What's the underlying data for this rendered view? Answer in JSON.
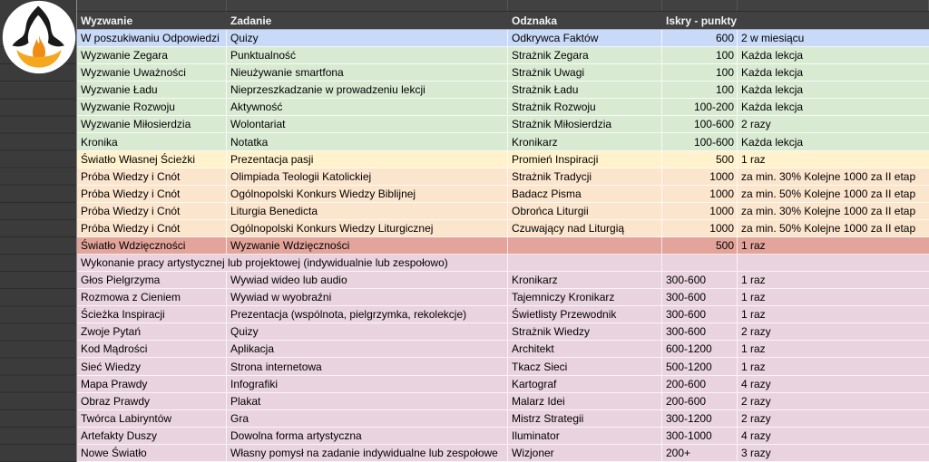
{
  "logo": {
    "icon": "hooded-figure-flame-logo",
    "colors": {
      "circle": "#ffffff",
      "figure": "#1a1a1a",
      "flame": "#ef8c15",
      "bowl": "#f5a71d"
    }
  },
  "sheet": {
    "columns": [
      "Wyzwanie",
      "Zadanie",
      "Odznaka",
      "Iskry - punkty",
      ""
    ],
    "colors": {
      "blue": "#c9daf8",
      "green": "#d9ead3",
      "yellow": "#fff2cc",
      "peach": "#fce5cd",
      "salmon": "#e2a49b",
      "pink": "#e9d3de",
      "header_bg": "#414141",
      "header_text": "#f3f3f3",
      "gutter_bg": "#3b3b3b"
    },
    "rows": [
      {
        "wyzwanie": "W poszukiwaniu Odpowiedzi",
        "zadanie": "Quizy",
        "odznaka": "Odkrywca Faktów",
        "punkty": "600",
        "czestotliwosc": "2 w miesiącu",
        "bg": "blue",
        "punkty_align": "right"
      },
      {
        "wyzwanie": "Wyzwanie Zegara",
        "zadanie": "Punktualność",
        "odznaka": "Strażnik Zegara",
        "punkty": "100",
        "czestotliwosc": "Każda lekcja",
        "bg": "green",
        "punkty_align": "right"
      },
      {
        "wyzwanie": "Wyzwanie Uważności",
        "zadanie": "Nieużywanie smartfona",
        "odznaka": "Strażnik Uwagi",
        "punkty": "100",
        "czestotliwosc": "Każda lekcja",
        "bg": "green",
        "punkty_align": "right"
      },
      {
        "wyzwanie": "Wyzwanie Ładu",
        "zadanie": "Nieprzeszkadzanie w prowadzeniu lekcji",
        "odznaka": "Strażnik Ładu",
        "punkty": "100",
        "czestotliwosc": "Każda lekcja",
        "bg": "green",
        "punkty_align": "right"
      },
      {
        "wyzwanie": "Wyzwanie Rozwoju",
        "zadanie": "Aktywność",
        "odznaka": "Strażnik Rozwoju",
        "punkty": "100-200",
        "czestotliwosc": "Każda lekcja",
        "bg": "green",
        "punkty_align": "right"
      },
      {
        "wyzwanie": "Wyzwanie Miłosierdzia",
        "zadanie": "Wolontariat",
        "odznaka": "Strażnik Miłosierdzia",
        "punkty": "100-600",
        "czestotliwosc": "2 razy",
        "bg": "green",
        "punkty_align": "right"
      },
      {
        "wyzwanie": "Kronika",
        "zadanie": "Notatka",
        "odznaka": "Kronikarz",
        "punkty": "100-600",
        "czestotliwosc": "Każda lekcja",
        "bg": "green",
        "punkty_align": "right"
      },
      {
        "wyzwanie": "Światło Własnej Ścieżki",
        "zadanie": "Prezentacja pasji",
        "odznaka": "Promień Inspiracji",
        "punkty": "500",
        "czestotliwosc": "1 raz",
        "bg": "yellow",
        "punkty_align": "right"
      },
      {
        "wyzwanie": "Próba Wiedzy i Cnót",
        "zadanie": "Olimpiada Teologii Katolickiej",
        "odznaka": "Strażnik Tradycji",
        "punkty": "1000",
        "czestotliwosc": "za min. 30% Kolejne 1000 za II etap",
        "bg": "peach",
        "punkty_align": "right"
      },
      {
        "wyzwanie": "Próba Wiedzy i Cnót",
        "zadanie": "Ogólnopolski Konkurs Wiedzy Biblijnej",
        "odznaka": "Badacz Pisma",
        "punkty": "1000",
        "czestotliwosc": "za min. 50% Kolejne 1000 za II etap",
        "bg": "peach",
        "punkty_align": "right"
      },
      {
        "wyzwanie": "Próba Wiedzy i Cnót",
        "zadanie": "Liturgia Benedicta",
        "odznaka": "Obrońca Liturgii",
        "punkty": "1000",
        "czestotliwosc": "za min. 30% Kolejne 1000 za II etap",
        "bg": "peach",
        "punkty_align": "right"
      },
      {
        "wyzwanie": "Próba Wiedzy i Cnót",
        "zadanie": "Ogólnopolski Konkurs Wiedzy Liturgicznej",
        "odznaka": "Czuwający nad Liturgią",
        "punkty": "1000",
        "czestotliwosc": "za min. 50% Kolejne 1000 za II etap",
        "bg": "peach",
        "punkty_align": "right"
      },
      {
        "wyzwanie": "Światło Wdzięczności",
        "zadanie": "Wyzwanie Wdzięczności",
        "odznaka": "",
        "punkty": "500",
        "czestotliwosc": "1 raz",
        "bg": "salmon",
        "punkty_align": "right"
      },
      {
        "wyzwanie": "Wykonanie pracy artystycznej lub projektowej (indywidualnie lub zespołowo)",
        "zadanie": "",
        "odznaka": "",
        "punkty": "",
        "czestotliwosc": "",
        "bg": "pink",
        "punkty_align": "left",
        "overflow": true
      },
      {
        "wyzwanie": "Głos Pielgrzyma",
        "zadanie": "Wywiad wideo lub audio",
        "odznaka": "Kronikarz",
        "punkty": "300-600",
        "czestotliwosc": "1 raz",
        "bg": "pink",
        "punkty_align": "left"
      },
      {
        "wyzwanie": "Rozmowa z Cieniem",
        "zadanie": "Wywiad w wyobraźni",
        "odznaka": "Tajemniczy Kronikarz",
        "punkty": "300-600",
        "czestotliwosc": "1 raz",
        "bg": "pink",
        "punkty_align": "left"
      },
      {
        "wyzwanie": "Ścieżka Inspiracji",
        "zadanie": "Prezentacja (wspólnota, pielgrzymka, rekolekcje)",
        "odznaka": "Świetlisty Przewodnik",
        "punkty": "300-600",
        "czestotliwosc": "1 raz",
        "bg": "pink",
        "punkty_align": "left"
      },
      {
        "wyzwanie": "Zwoje Pytań",
        "zadanie": "Quizy",
        "odznaka": "Strażnik Wiedzy",
        "punkty": "300-600",
        "czestotliwosc": "2 razy",
        "bg": "pink",
        "punkty_align": "left"
      },
      {
        "wyzwanie": "Kod Mądrości",
        "zadanie": "Aplikacja",
        "odznaka": "Architekt",
        "punkty": "600-1200",
        "czestotliwosc": "1 raz",
        "bg": "pink",
        "punkty_align": "left"
      },
      {
        "wyzwanie": "Sieć Wiedzy",
        "zadanie": "Strona internetowa",
        "odznaka": "Tkacz Sieci",
        "punkty": "500-1200",
        "czestotliwosc": "1 raz",
        "bg": "pink",
        "punkty_align": "left"
      },
      {
        "wyzwanie": "Mapa Prawdy",
        "zadanie": "Infografiki",
        "odznaka": "Kartograf",
        "punkty": "200-600",
        "czestotliwosc": "4 razy",
        "bg": "pink",
        "punkty_align": "left"
      },
      {
        "wyzwanie": "Obraz Prawdy",
        "zadanie": "Plakat",
        "odznaka": "Malarz Idei",
        "punkty": "200-600",
        "czestotliwosc": "2 razy",
        "bg": "pink",
        "punkty_align": "left"
      },
      {
        "wyzwanie": "Twórca Labiryntów",
        "zadanie": "Gra",
        "odznaka": "Mistrz Strategii",
        "punkty": "300-1200",
        "czestotliwosc": "2 razy",
        "bg": "pink",
        "punkty_align": "left"
      },
      {
        "wyzwanie": "Artefakty Duszy",
        "zadanie": "Dowolna forma artystyczna",
        "odznaka": "Iluminator",
        "punkty": "300-1000",
        "czestotliwosc": "4 razy",
        "bg": "pink",
        "punkty_align": "left"
      },
      {
        "wyzwanie": "Nowe Światło",
        "zadanie": "Własny pomysł na zadanie indywidualne lub zespołowe",
        "odznaka": "Wizjoner",
        "punkty": "200+",
        "czestotliwosc": "3 razy",
        "bg": "pink",
        "punkty_align": "left"
      }
    ]
  }
}
